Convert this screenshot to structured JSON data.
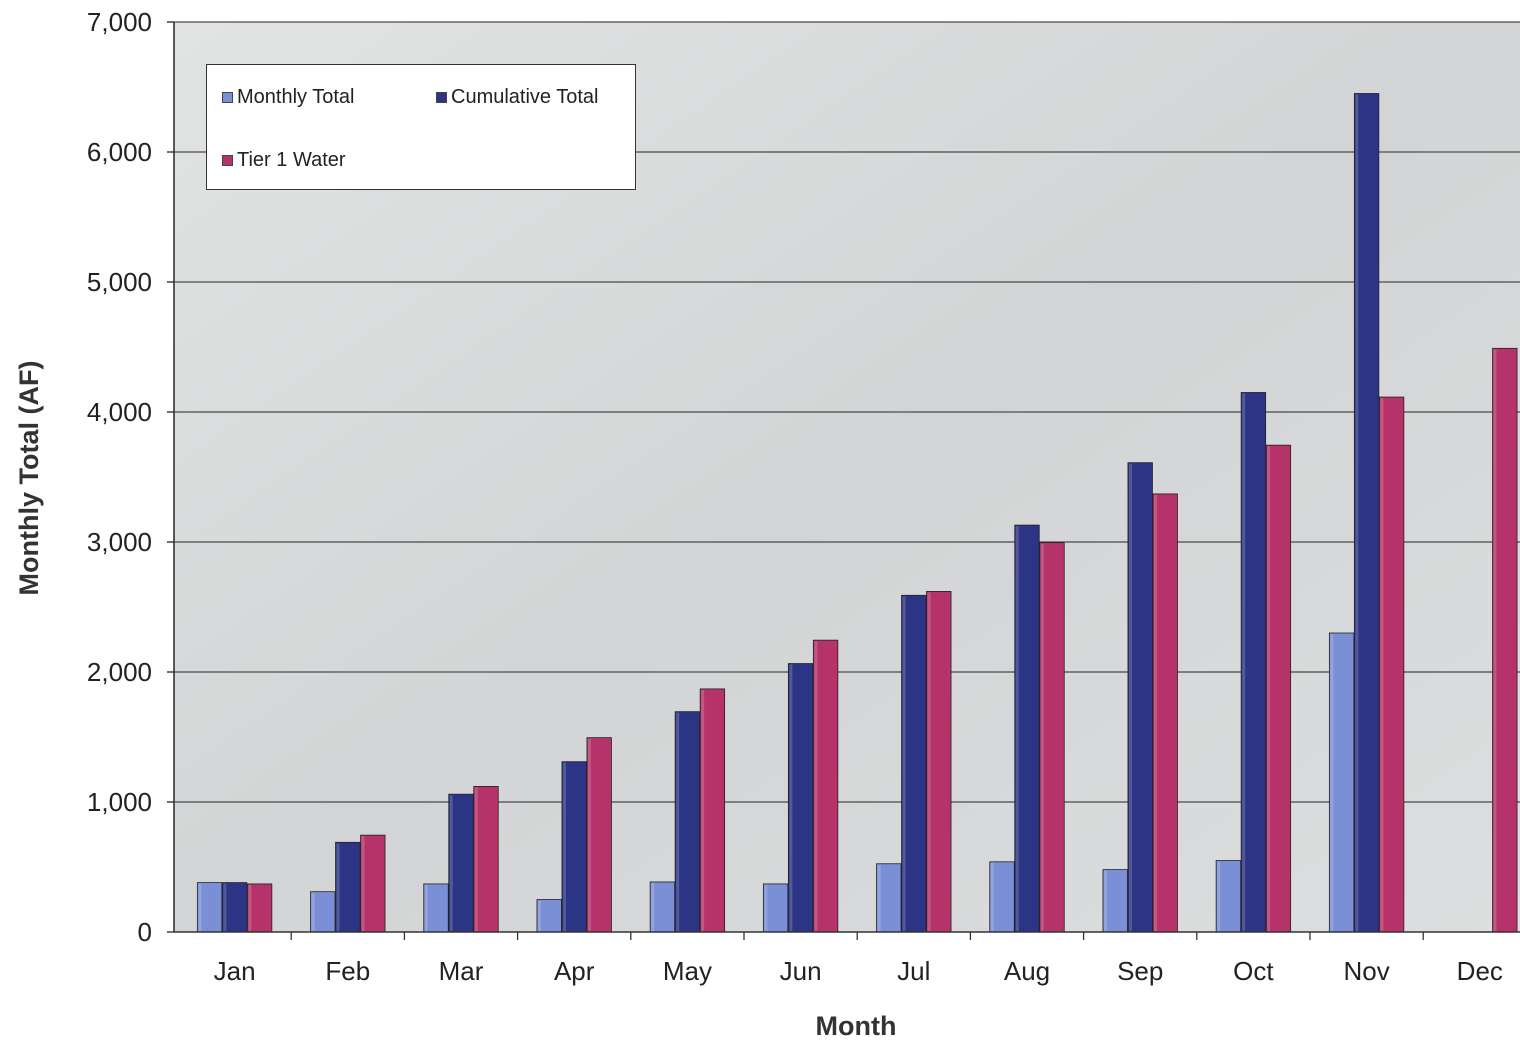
{
  "chart_data": {
    "type": "bar",
    "title": "",
    "xlabel": "Month",
    "ylabel": "Monthly Total (AF)",
    "ylim": [
      0,
      7000
    ],
    "yticks": [
      0,
      1000,
      2000,
      3000,
      4000,
      5000,
      6000,
      7000
    ],
    "ytick_labels": [
      "0",
      "1,000",
      "2,000",
      "3,000",
      "4,000",
      "5,000",
      "6,000",
      "7,000"
    ],
    "grid": true,
    "legend_position": "top-left",
    "categories": [
      "Jan",
      "Feb",
      "Mar",
      "Apr",
      "May",
      "Jun",
      "Jul",
      "Aug",
      "Sep",
      "Oct",
      "Nov",
      "Dec"
    ],
    "series": [
      {
        "name": "Monthly Total",
        "color": "#7b8fd6",
        "values": [
          380,
          310,
          370,
          250,
          385,
          370,
          525,
          540,
          480,
          550,
          2300,
          null
        ]
      },
      {
        "name": "Cumulative Total",
        "color": "#2c3585",
        "values": [
          380,
          690,
          1060,
          1310,
          1695,
          2065,
          2590,
          3130,
          3610,
          4150,
          6450,
          null
        ]
      },
      {
        "name": "Tier 1 Water",
        "color": "#b5336a",
        "values": [
          370,
          745,
          1120,
          1495,
          1870,
          2245,
          2620,
          2995,
          3370,
          3745,
          4115,
          4490
        ]
      }
    ]
  }
}
